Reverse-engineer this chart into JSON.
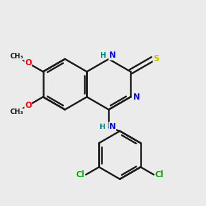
{
  "bg_color": "#ebebeb",
  "bond_color": "#1a1a1a",
  "bond_width": 1.8,
  "atom_colors": {
    "N": "#0000ff",
    "O": "#ff0000",
    "S": "#ccbb00",
    "Cl": "#00aa00",
    "C": "#1a1a1a",
    "H": "#008888"
  },
  "font_size_atom": 8.5,
  "font_size_small": 7.0,
  "font_size_label": 7.5
}
